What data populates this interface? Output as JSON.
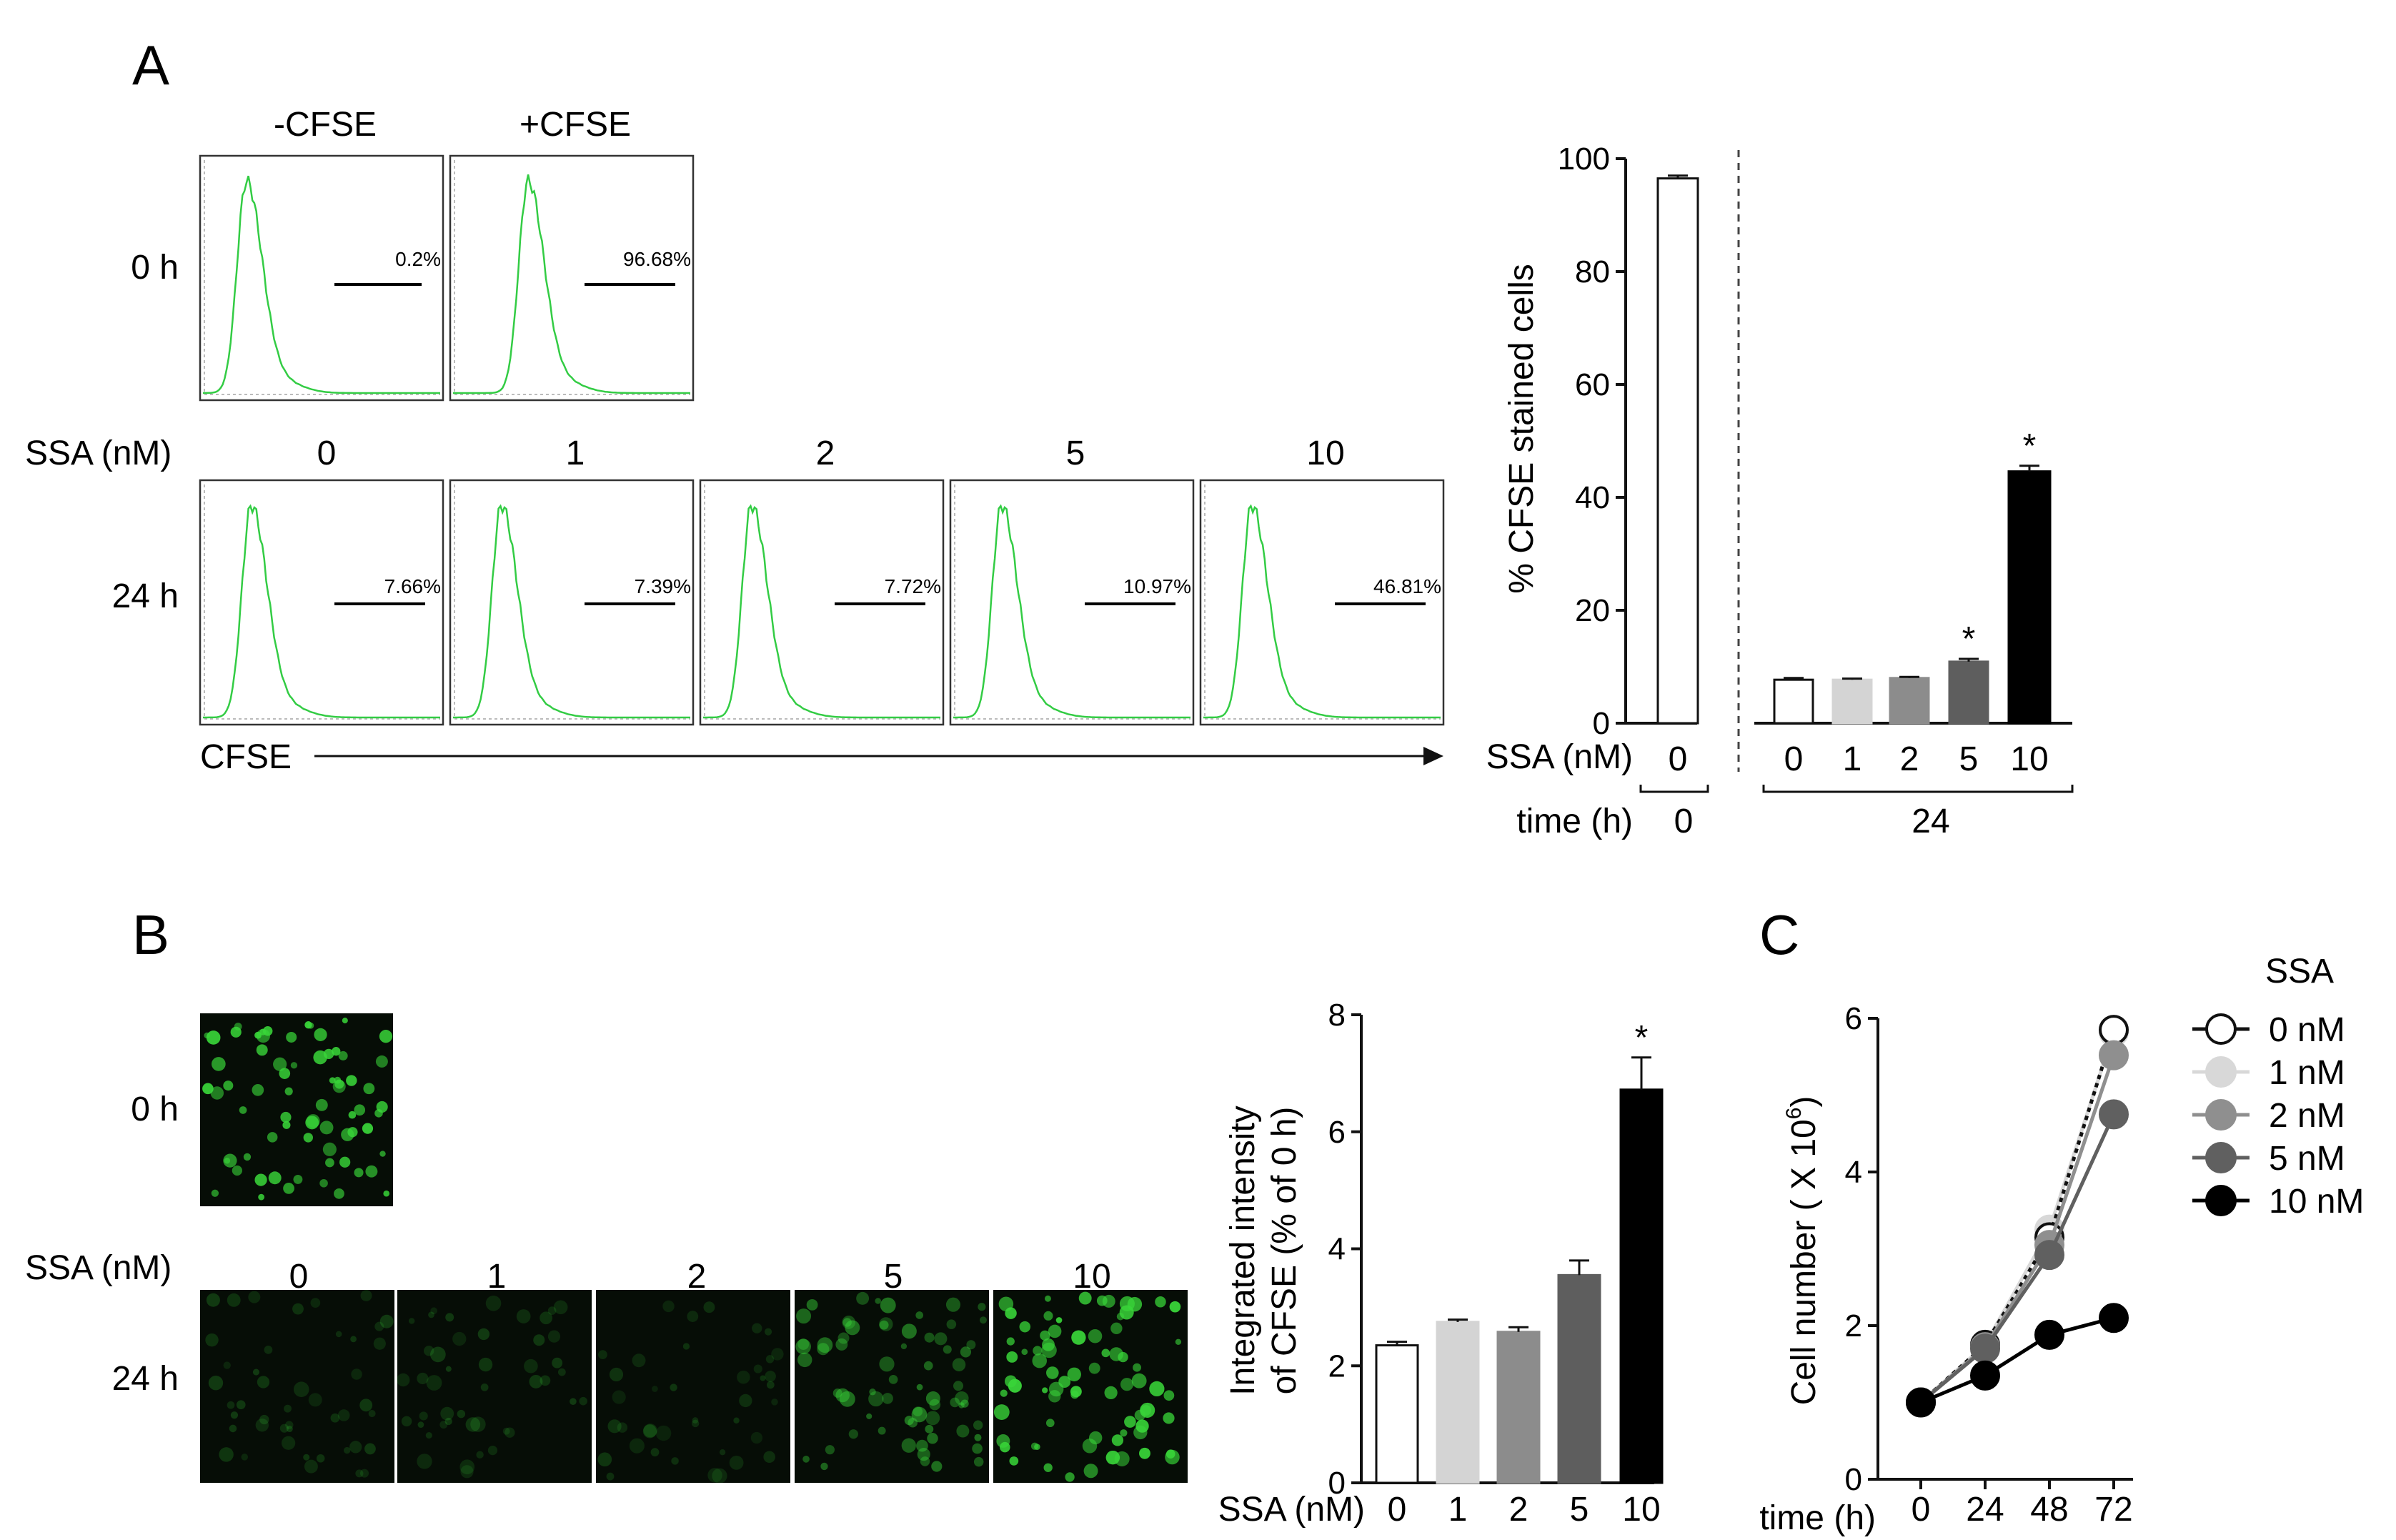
{
  "panel_labels": {
    "a": "A",
    "b": "B",
    "c": "C"
  },
  "colors": {
    "histogram": "#33cc44",
    "micrograph_bg": "#060d06",
    "cell": "#39d639",
    "ssa_0": "#ffffff",
    "ssa_1": "#d4d4d4",
    "ssa_2": "#8c8c8c",
    "ssa_5": "#5e5e5e",
    "ssa_10": "#000000"
  },
  "panel_a": {
    "col_headers": [
      "-CFSE",
      "+CFSE"
    ],
    "row_0h": "0 h",
    "row_24h": "24 h",
    "ssa_label": "SSA (nM)",
    "ssa_levels": [
      "0",
      "1",
      "2",
      "5",
      "10"
    ],
    "pct_0h": [
      "0.2%",
      "96.68%"
    ],
    "pct_24h": [
      "7.66%",
      "7.39%",
      "7.72%",
      "10.97%",
      "46.81%"
    ],
    "x_axis_label": "CFSE"
  },
  "panel_b": {
    "row_0h": "0 h",
    "row_24h": "24 h",
    "ssa_label": "SSA (nM)",
    "ssa_levels": [
      "0",
      "1",
      "2",
      "5",
      "10"
    ]
  },
  "chart_data": [
    {
      "id": "A-bar",
      "type": "bar",
      "title": "",
      "ylabel": "% CFSE stained cells",
      "xlabel": "SSA (nM)",
      "ylim": [
        0,
        100
      ],
      "yticks": [
        "0",
        "20",
        "40",
        "60",
        "80",
        "100"
      ],
      "categories": [
        "0",
        "0",
        "1",
        "2",
        "5",
        "10"
      ],
      "values": [
        96.5,
        7.7,
        7.7,
        8.0,
        10.9,
        44.6
      ],
      "errors": [
        0.5,
        0.3,
        0.2,
        0.2,
        0.5,
        1.0
      ],
      "significance": [
        "",
        "",
        "",
        "",
        "*",
        "*"
      ],
      "group_label": "time (h)",
      "groups": [
        "0",
        "24"
      ]
    },
    {
      "id": "B-bar",
      "type": "bar",
      "title": "",
      "ylabel": "Integrated intensity of CFSE (% of 0 h)",
      "ylabel_lines": [
        "Integrated intensity",
        "of CFSE (% of 0 h)"
      ],
      "xlabel": "SSA (nM)",
      "ylim": [
        0,
        8
      ],
      "yticks": [
        "0",
        "2",
        "4",
        "6",
        "8"
      ],
      "categories": [
        "0",
        "1",
        "2",
        "5",
        "10"
      ],
      "values": [
        2.35,
        2.75,
        2.58,
        3.55,
        6.72
      ],
      "errors": [
        0.06,
        0.04,
        0.08,
        0.25,
        0.55
      ],
      "significance": [
        "",
        "",
        "",
        "",
        "*"
      ]
    },
    {
      "id": "C-line",
      "type": "line",
      "title": "",
      "ylabel": "Cell number ( X 10⁶)",
      "ylabel_main": "Cell number ( X 10",
      "ylabel_sup": "6",
      "ylabel_end": ")",
      "xlabel": "time (h)",
      "x": [
        0,
        24,
        48,
        72
      ],
      "xticks": [
        "0",
        "24",
        "48",
        "72"
      ],
      "ylim": [
        0,
        6
      ],
      "yticks": [
        "0",
        "2",
        "4",
        "6"
      ],
      "legend_title": "SSA",
      "series": [
        {
          "name": "0 nM",
          "values": [
            1.0,
            1.75,
            3.15,
            5.85
          ]
        },
        {
          "name": "1 nM",
          "values": [
            1.0,
            1.75,
            3.25,
            5.82
          ]
        },
        {
          "name": "2 nM",
          "values": [
            1.0,
            1.72,
            3.05,
            5.52
          ]
        },
        {
          "name": "5 nM",
          "values": [
            1.0,
            1.7,
            2.92,
            4.75
          ]
        },
        {
          "name": "10 nM",
          "values": [
            1.0,
            1.35,
            1.88,
            2.1
          ]
        }
      ]
    }
  ]
}
